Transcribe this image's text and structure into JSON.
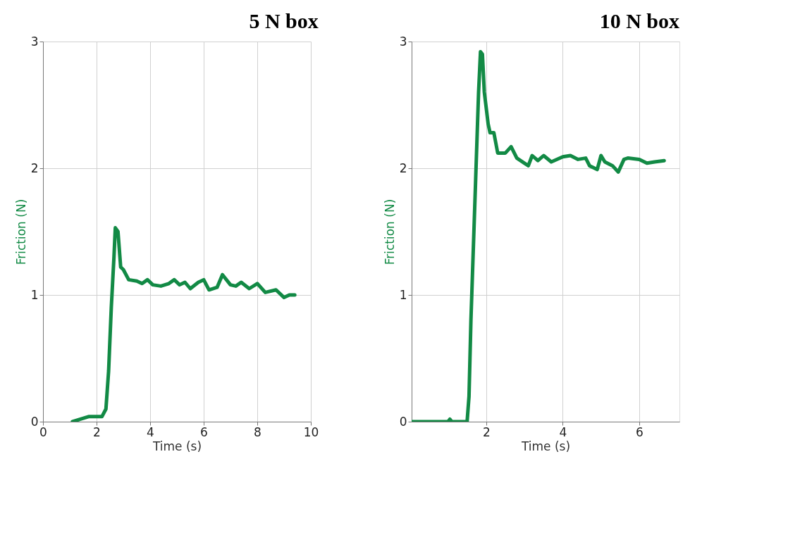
{
  "chart_data": [
    {
      "type": "line",
      "title": "5 N box",
      "xlabel": "Time (s)",
      "ylabel": "Friction (N)",
      "xlim": [
        0,
        10
      ],
      "ylim": [
        0,
        3
      ],
      "xticks": [
        0,
        2,
        4,
        6,
        8,
        10
      ],
      "yticks": [
        0,
        1,
        2,
        3
      ],
      "grid": true,
      "series": [
        {
          "color": "#128a45",
          "x": [
            1.1,
            1.4,
            1.7,
            2.2,
            2.35,
            2.45,
            2.55,
            2.65,
            2.7,
            2.8,
            2.9,
            3.0,
            3.2,
            3.5,
            3.7,
            3.9,
            4.1,
            4.4,
            4.7,
            4.9,
            5.1,
            5.3,
            5.5,
            5.8,
            6.0,
            6.2,
            6.5,
            6.7,
            7.0,
            7.2,
            7.4,
            7.7,
            8.0,
            8.3,
            8.7,
            9.0,
            9.2,
            9.4
          ],
          "values": [
            0,
            0.02,
            0.04,
            0.04,
            0.1,
            0.4,
            0.9,
            1.3,
            1.53,
            1.5,
            1.22,
            1.2,
            1.12,
            1.11,
            1.09,
            1.12,
            1.08,
            1.07,
            1.09,
            1.12,
            1.08,
            1.1,
            1.05,
            1.1,
            1.12,
            1.04,
            1.06,
            1.16,
            1.08,
            1.07,
            1.1,
            1.05,
            1.09,
            1.02,
            1.04,
            0.98,
            1.0,
            1.0
          ]
        }
      ]
    },
    {
      "type": "line",
      "title": "10 N box",
      "xlabel": "Time (s)",
      "ylabel": "Friction (N)",
      "xlim": [
        0.05,
        7.05
      ],
      "ylim": [
        0,
        3
      ],
      "xticks": [
        2,
        4,
        6
      ],
      "yticks": [
        0,
        1,
        2,
        3
      ],
      "grid": true,
      "series": [
        {
          "color": "#128a45",
          "x": [
            0.06,
            1.0,
            1.05,
            1.1,
            1.5,
            1.55,
            1.6,
            1.7,
            1.8,
            1.85,
            1.9,
            1.95,
            2.05,
            2.1,
            2.2,
            2.3,
            2.5,
            2.65,
            2.8,
            3.0,
            3.1,
            3.2,
            3.35,
            3.5,
            3.7,
            4.0,
            4.2,
            4.4,
            4.6,
            4.7,
            4.9,
            5.0,
            5.1,
            5.3,
            5.45,
            5.6,
            5.7,
            6.0,
            6.2,
            6.4,
            6.65
          ],
          "values": [
            0,
            0,
            0.02,
            0,
            0,
            0.2,
            0.8,
            1.7,
            2.6,
            2.92,
            2.9,
            2.6,
            2.35,
            2.28,
            2.28,
            2.12,
            2.12,
            2.17,
            2.08,
            2.04,
            2.02,
            2.1,
            2.06,
            2.1,
            2.05,
            2.09,
            2.1,
            2.07,
            2.08,
            2.02,
            1.99,
            2.1,
            2.05,
            2.02,
            1.97,
            2.07,
            2.08,
            2.07,
            2.04,
            2.05,
            2.06
          ]
        }
      ]
    }
  ]
}
